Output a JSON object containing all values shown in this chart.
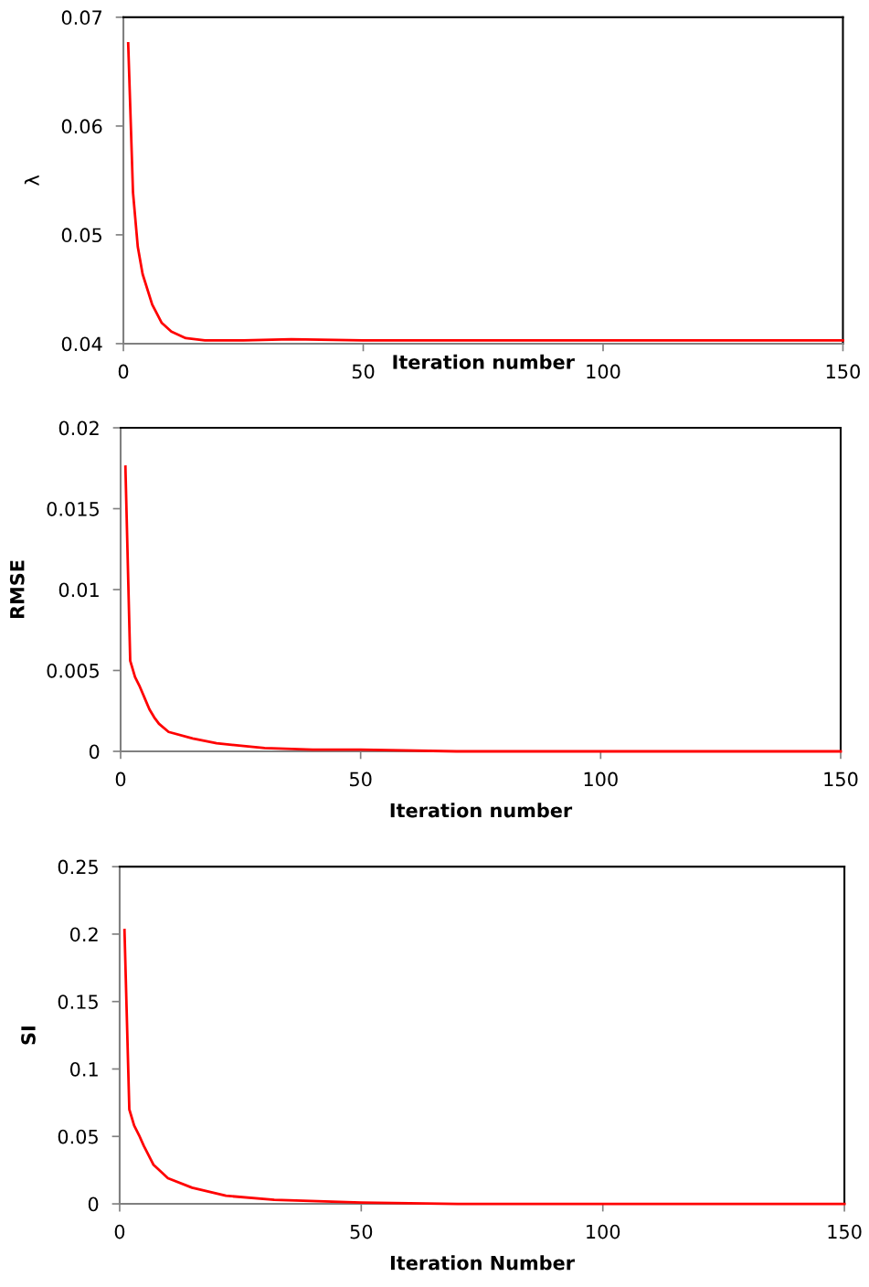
{
  "chart_data": [
    {
      "type": "line",
      "xlabel": "Iteration number",
      "ylabel": "λ",
      "xlim": [
        0,
        150
      ],
      "xticks": [
        0,
        50,
        100,
        150
      ],
      "ylim": [
        0.04,
        0.07
      ],
      "yticks": [
        0.04,
        0.05,
        0.06,
        0.07
      ],
      "series": [
        {
          "color": "#ff0000",
          "x": [
            1,
            2,
            3,
            4,
            6,
            8,
            10,
            13,
            17,
            25,
            35,
            50,
            100,
            150
          ],
          "values": [
            0.0676,
            0.0539,
            0.0489,
            0.0464,
            0.0436,
            0.0419,
            0.0411,
            0.0405,
            0.0403,
            0.0403,
            0.0404,
            0.0403,
            0.0403,
            0.0403
          ]
        }
      ]
    },
    {
      "type": "line",
      "xlabel": "Iteration number",
      "ylabel": "RMSE",
      "xlim": [
        0,
        150
      ],
      "xticks": [
        0,
        50,
        100,
        150
      ],
      "ylim": [
        0,
        0.02
      ],
      "yticks": [
        0,
        0.005,
        0.01,
        0.015,
        0.02
      ],
      "series": [
        {
          "color": "#ff0000",
          "x": [
            1,
            2,
            3,
            4,
            5,
            6,
            7,
            8,
            10,
            15,
            20,
            30,
            40,
            50,
            70,
            100,
            150
          ],
          "values": [
            0.0176,
            0.0056,
            0.0046,
            0.004,
            0.0033,
            0.0026,
            0.0021,
            0.0017,
            0.0012,
            0.0008,
            0.0005,
            0.0002,
            0.0001,
            0.0001,
            0,
            0,
            0
          ]
        }
      ]
    },
    {
      "type": "line",
      "xlabel": "Iteration Number",
      "ylabel": "SI",
      "xlim": [
        0,
        150
      ],
      "xticks": [
        0,
        50,
        100,
        150
      ],
      "ylim": [
        0,
        0.25
      ],
      "yticks": [
        0,
        0.05,
        0.1,
        0.15,
        0.2,
        0.25
      ],
      "series": [
        {
          "color": "#ff0000",
          "x": [
            1,
            2,
            3,
            4,
            5,
            7,
            10,
            15,
            22,
            32,
            50,
            70,
            100,
            150
          ],
          "values": [
            0.203,
            0.07,
            0.058,
            0.051,
            0.043,
            0.029,
            0.019,
            0.012,
            0.006,
            0.003,
            0.001,
            0,
            0,
            0
          ]
        }
      ]
    }
  ]
}
